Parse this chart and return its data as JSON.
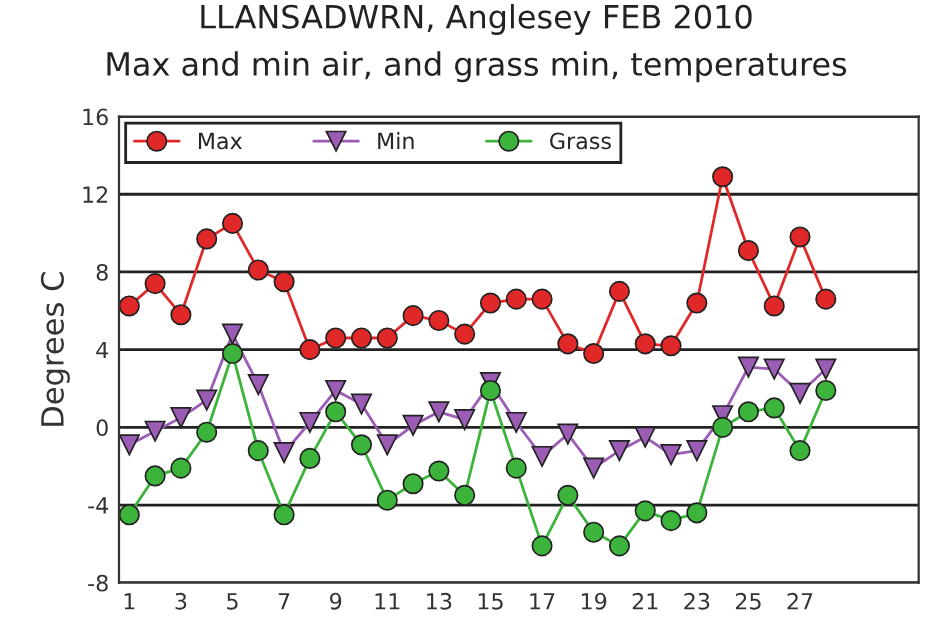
{
  "chart_data": {
    "type": "line",
    "title": "LLANSADWRN, Anglesey FEB 2010",
    "subtitle": "Max and min air, and grass min, temperatures",
    "ylabel": "Degrees C",
    "x": [
      1,
      2,
      3,
      4,
      5,
      6,
      7,
      8,
      9,
      10,
      11,
      12,
      13,
      14,
      15,
      16,
      17,
      18,
      19,
      20,
      21,
      22,
      23,
      24,
      25,
      26,
      27,
      28
    ],
    "series": [
      {
        "name": "Max",
        "color": "#e02828",
        "marker": "circle",
        "values": [
          6.25,
          7.4,
          5.8,
          9.7,
          10.5,
          8.1,
          7.5,
          4.0,
          4.6,
          4.6,
          4.6,
          5.75,
          5.5,
          4.8,
          6.4,
          6.6,
          6.6,
          4.3,
          3.8,
          7.0,
          4.3,
          4.2,
          6.4,
          12.9,
          9.1,
          6.25,
          9.8,
          6.6
        ]
      },
      {
        "name": "Min",
        "color": "#9a5cb4",
        "marker": "triangle",
        "values": [
          -0.9,
          -0.2,
          0.5,
          1.4,
          4.8,
          2.2,
          -1.3,
          0.25,
          1.9,
          1.2,
          -0.9,
          0.1,
          0.8,
          0.4,
          2.3,
          0.25,
          -1.5,
          -0.35,
          -2.1,
          -1.2,
          -0.5,
          -1.4,
          -1.2,
          0.6,
          3.1,
          3.0,
          1.75,
          3.0
        ]
      },
      {
        "name": "Grass",
        "color": "#3cb43c",
        "marker": "circle",
        "values": [
          -4.5,
          -2.5,
          -2.1,
          -0.25,
          3.8,
          -1.2,
          -4.5,
          -1.6,
          0.8,
          -0.9,
          -3.75,
          -2.9,
          -2.25,
          -3.5,
          1.9,
          -2.1,
          -6.1,
          -3.5,
          -5.4,
          -6.1,
          -4.3,
          -4.8,
          -4.4,
          0,
          0.8,
          1.0,
          -1.2,
          1.9
        ]
      }
    ],
    "xlim": [
      0.6,
      31.6
    ],
    "xticks": [
      1,
      3,
      5,
      7,
      9,
      11,
      13,
      15,
      17,
      19,
      21,
      23,
      25,
      27
    ],
    "ylim": [
      -8,
      16
    ],
    "yticks": [
      -8,
      -4,
      0,
      4,
      8,
      12,
      16
    ],
    "grid": "y",
    "legend": "top left"
  }
}
